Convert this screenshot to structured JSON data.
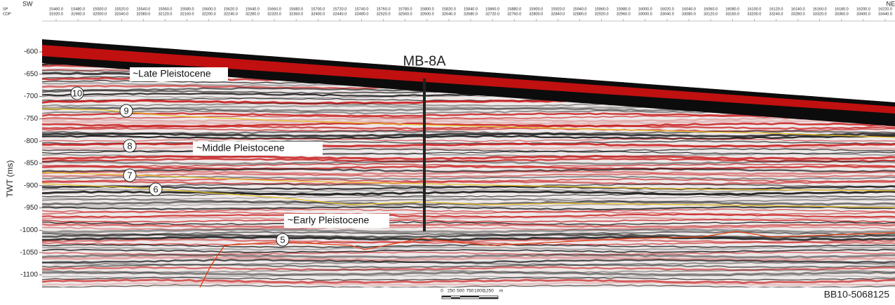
{
  "header": {
    "left": "SW",
    "right": "NE",
    "sp_label": "SP",
    "cdp_label": "CDP",
    "sp": [
      "15460.0",
      "15480.0",
      "15500.0",
      "15520.0",
      "15540.0",
      "15560.0",
      "15580.0",
      "15600.0",
      "15620.0",
      "15640.0",
      "15660.0",
      "15680.0",
      "15700.0",
      "15720.0",
      "15740.0",
      "15760.0",
      "15780.0",
      "15800.0",
      "15820.0",
      "15840.0",
      "15860.0",
      "15880.0",
      "15900.0",
      "15920.0",
      "15940.0",
      "15960.0",
      "15980.0",
      "16000.0",
      "16020.0",
      "16040.0",
      "16060.0",
      "16080.0",
      "16100.0",
      "16120.0",
      "16140.0",
      "16160.0",
      "16180.0",
      "16200.0",
      "16220.0"
    ],
    "cdp": [
      "31920.0",
      "31960.0",
      "32000.0",
      "32040.0",
      "32080.0",
      "32120.0",
      "32160.0",
      "32200.0",
      "32240.0",
      "32280.0",
      "32320.0",
      "32360.0",
      "32400.0",
      "32440.0",
      "32480.0",
      "32520.0",
      "32560.0",
      "32600.0",
      "32640.0",
      "32680.0",
      "32720.0",
      "32760.0",
      "32800.0",
      "32840.0",
      "32880.0",
      "32920.0",
      "32960.0",
      "33000.0",
      "33040.0",
      "33080.0",
      "33120.0",
      "33160.0",
      "33200.0",
      "33240.0",
      "33280.0",
      "33320.0",
      "33360.0",
      "33400.0",
      "33440.0"
    ]
  },
  "y_axis": {
    "label": "TWT (ms)",
    "ticks": [
      -600,
      -650,
      -700,
      -750,
      -800,
      -850,
      -900,
      -950,
      -1000,
      -1050,
      -1100
    ]
  },
  "well": "MB-8A",
  "units": {
    "late": "~Late Pleistocene",
    "middle": "~Middle Pleistocene",
    "early": "~Early Pleistocene"
  },
  "horizons": [
    "10",
    "9",
    "8",
    "7",
    "6",
    "5"
  ],
  "scale_bar": {
    "labels": [
      "0",
      "250",
      "500",
      "750",
      "1000",
      "1250"
    ],
    "unit": "m"
  },
  "line_id": "BB10-5068125"
}
